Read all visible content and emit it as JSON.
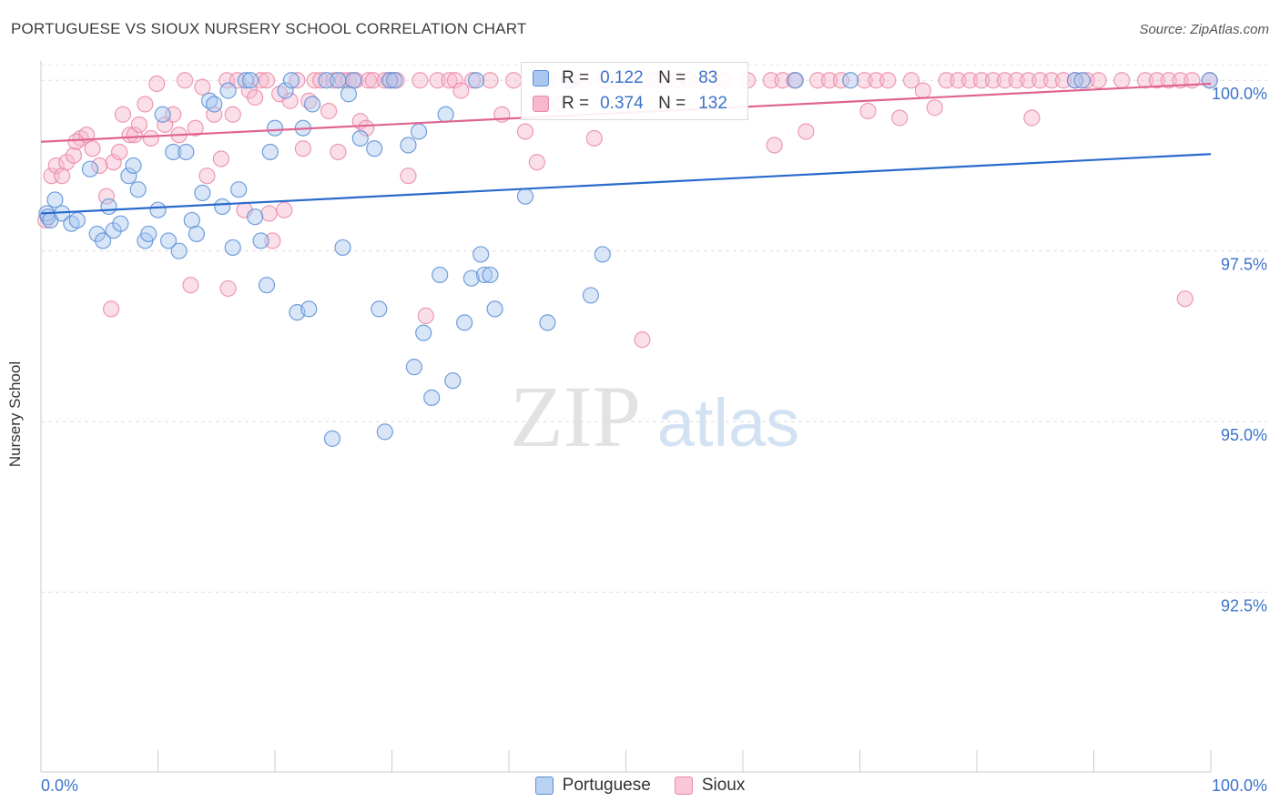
{
  "title": "PORTUGUESE VS SIOUX NURSERY SCHOOL CORRELATION CHART",
  "source": "Source: ZipAtlas.com",
  "watermark": {
    "part1": "ZIP",
    "part2": "atlas"
  },
  "colors": {
    "portuguese_fill": "#a9c7ef",
    "portuguese_stroke": "#5b8fd6",
    "portuguese_line": "#2a6acb",
    "sioux_fill": "#f7b8cb",
    "sioux_stroke": "#ea8aa8",
    "sioux_line": "#e06490",
    "tick_label": "#3b73c9",
    "grid": "#dddddd"
  },
  "legend_top": {
    "rows": [
      {
        "r_label": "R =",
        "r_value": "0.122",
        "n_label": "N =",
        "n_value": "83"
      },
      {
        "r_label": "R =",
        "r_value": "0.374",
        "n_label": "N =",
        "n_value": "132"
      }
    ]
  },
  "legend_bottom": [
    "Portuguese",
    "Sioux"
  ],
  "chart_data": {
    "type": "scatter",
    "title": "PORTUGUESE VS SIOUX NURSERY SCHOOL CORRELATION CHART",
    "xlabel": "",
    "ylabel": "Nursery School",
    "xlim": [
      0,
      100
    ],
    "ylim": [
      90.0,
      100.35
    ],
    "x_tick_labels": [
      "0.0%",
      "100.0%"
    ],
    "y_ticks": [
      {
        "value": 100.0,
        "label": "100.0%"
      },
      {
        "value": 97.5,
        "label": "97.5%"
      },
      {
        "value": 95.0,
        "label": "95.0%"
      },
      {
        "value": 92.5,
        "label": "92.5%"
      }
    ],
    "grid": true,
    "legend_position": "bottom",
    "series": [
      {
        "name": "Portuguese",
        "trend": {
          "x": [
            0,
            100
          ],
          "y": [
            98.05,
            98.92
          ]
        },
        "points": [
          [
            0.5,
            98.05
          ],
          [
            0.6,
            98.0
          ],
          [
            0.8,
            97.95
          ],
          [
            1.2,
            98.25
          ],
          [
            1.8,
            98.05
          ],
          [
            2.6,
            97.9
          ],
          [
            3.1,
            97.95
          ],
          [
            4.2,
            98.7
          ],
          [
            4.8,
            97.75
          ],
          [
            5.3,
            97.65
          ],
          [
            5.8,
            98.15
          ],
          [
            6.2,
            97.8
          ],
          [
            6.8,
            97.9
          ],
          [
            7.5,
            98.6
          ],
          [
            7.9,
            98.75
          ],
          [
            8.3,
            98.4
          ],
          [
            8.9,
            97.65
          ],
          [
            9.2,
            97.75
          ],
          [
            10.0,
            98.1
          ],
          [
            10.4,
            99.5
          ],
          [
            10.9,
            97.65
          ],
          [
            11.3,
            98.95
          ],
          [
            11.8,
            97.5
          ],
          [
            12.4,
            98.95
          ],
          [
            12.9,
            97.95
          ],
          [
            13.3,
            97.75
          ],
          [
            13.8,
            98.35
          ],
          [
            14.4,
            99.7
          ],
          [
            14.8,
            99.65
          ],
          [
            15.5,
            98.15
          ],
          [
            16.0,
            99.85
          ],
          [
            16.4,
            97.55
          ],
          [
            16.9,
            98.4
          ],
          [
            17.5,
            100.0
          ],
          [
            17.9,
            100.0
          ],
          [
            18.3,
            98.0
          ],
          [
            18.8,
            97.65
          ],
          [
            19.3,
            97.0
          ],
          [
            19.6,
            98.95
          ],
          [
            20.0,
            99.3
          ],
          [
            20.9,
            99.85
          ],
          [
            21.4,
            100.0
          ],
          [
            21.9,
            96.6
          ],
          [
            22.4,
            99.3
          ],
          [
            22.9,
            96.65
          ],
          [
            23.2,
            99.65
          ],
          [
            24.4,
            100.0
          ],
          [
            24.9,
            94.75
          ],
          [
            25.4,
            100.0
          ],
          [
            25.8,
            97.55
          ],
          [
            26.3,
            99.8
          ],
          [
            26.7,
            100.0
          ],
          [
            27.3,
            99.15
          ],
          [
            28.5,
            99.0
          ],
          [
            28.9,
            96.65
          ],
          [
            29.4,
            94.85
          ],
          [
            29.8,
            100.0
          ],
          [
            30.2,
            100.0
          ],
          [
            31.4,
            99.05
          ],
          [
            31.9,
            95.8
          ],
          [
            32.3,
            99.25
          ],
          [
            32.7,
            96.3
          ],
          [
            33.4,
            95.35
          ],
          [
            34.1,
            97.15
          ],
          [
            34.6,
            99.5
          ],
          [
            35.2,
            95.6
          ],
          [
            36.2,
            96.45
          ],
          [
            36.8,
            97.1
          ],
          [
            37.2,
            100.0
          ],
          [
            37.6,
            97.45
          ],
          [
            37.9,
            97.15
          ],
          [
            38.4,
            97.15
          ],
          [
            38.8,
            96.65
          ],
          [
            41.4,
            98.3
          ],
          [
            43.3,
            96.45
          ],
          [
            45.1,
            100.0
          ],
          [
            47.0,
            96.85
          ],
          [
            48.0,
            97.45
          ],
          [
            64.5,
            100.0
          ],
          [
            69.2,
            100.0
          ],
          [
            88.4,
            100.0
          ],
          [
            89.0,
            100.0
          ],
          [
            99.9,
            100.0
          ]
        ]
      },
      {
        "name": "Sioux",
        "trend": {
          "x": [
            0,
            100
          ],
          "y": [
            99.1,
            99.95
          ]
        },
        "points": [
          [
            0.4,
            97.95
          ],
          [
            0.9,
            98.6
          ],
          [
            1.3,
            98.75
          ],
          [
            1.8,
            98.6
          ],
          [
            2.2,
            98.8
          ],
          [
            2.8,
            98.9
          ],
          [
            3.4,
            99.15
          ],
          [
            3.9,
            99.2
          ],
          [
            4.4,
            99.0
          ],
          [
            5.0,
            98.75
          ],
          [
            5.6,
            98.3
          ],
          [
            6.2,
            98.8
          ],
          [
            6.7,
            98.95
          ],
          [
            7.0,
            99.5
          ],
          [
            7.6,
            99.2
          ],
          [
            8.0,
            99.2
          ],
          [
            8.4,
            99.35
          ],
          [
            8.9,
            99.65
          ],
          [
            9.4,
            99.15
          ],
          [
            9.9,
            99.95
          ],
          [
            10.6,
            99.35
          ],
          [
            11.3,
            99.5
          ],
          [
            11.8,
            99.2
          ],
          [
            12.3,
            100.0
          ],
          [
            12.8,
            97.0
          ],
          [
            13.2,
            99.3
          ],
          [
            13.8,
            99.9
          ],
          [
            14.2,
            98.6
          ],
          [
            14.8,
            99.5
          ],
          [
            15.4,
            98.85
          ],
          [
            15.9,
            100.0
          ],
          [
            16.4,
            99.5
          ],
          [
            16.8,
            100.0
          ],
          [
            17.4,
            98.1
          ],
          [
            17.8,
            99.85
          ],
          [
            18.3,
            99.75
          ],
          [
            18.8,
            100.0
          ],
          [
            19.3,
            100.0
          ],
          [
            19.8,
            97.65
          ],
          [
            20.4,
            99.8
          ],
          [
            20.8,
            98.1
          ],
          [
            21.3,
            99.7
          ],
          [
            21.9,
            100.0
          ],
          [
            22.4,
            99.0
          ],
          [
            22.9,
            99.7
          ],
          [
            23.4,
            100.0
          ],
          [
            23.9,
            100.0
          ],
          [
            24.6,
            99.55
          ],
          [
            25.0,
            100.0
          ],
          [
            25.4,
            98.95
          ],
          [
            25.8,
            100.0
          ],
          [
            26.3,
            100.0
          ],
          [
            26.9,
            100.0
          ],
          [
            27.3,
            99.4
          ],
          [
            28.0,
            100.0
          ],
          [
            28.4,
            100.0
          ],
          [
            29.4,
            100.0
          ],
          [
            29.9,
            100.0
          ],
          [
            30.4,
            100.0
          ],
          [
            31.4,
            98.6
          ],
          [
            32.4,
            100.0
          ],
          [
            32.9,
            96.55
          ],
          [
            33.9,
            100.0
          ],
          [
            34.9,
            100.0
          ],
          [
            35.4,
            100.0
          ],
          [
            35.9,
            99.85
          ],
          [
            36.9,
            100.0
          ],
          [
            38.4,
            100.0
          ],
          [
            39.4,
            99.5
          ],
          [
            40.4,
            100.0
          ],
          [
            41.4,
            99.25
          ],
          [
            42.4,
            98.8
          ],
          [
            43.4,
            100.0
          ],
          [
            44.4,
            99.65
          ],
          [
            45.4,
            100.0
          ],
          [
            46.4,
            100.0
          ],
          [
            47.3,
            99.15
          ],
          [
            48.3,
            100.0
          ],
          [
            49.3,
            100.0
          ],
          [
            50.4,
            100.0
          ],
          [
            51.4,
            96.2
          ],
          [
            52.4,
            100.0
          ],
          [
            53.4,
            100.0
          ],
          [
            54.4,
            100.0
          ],
          [
            55.4,
            100.0
          ],
          [
            57.4,
            100.0
          ],
          [
            58.4,
            100.0
          ],
          [
            60.4,
            100.0
          ],
          [
            62.4,
            100.0
          ],
          [
            62.7,
            99.05
          ],
          [
            63.4,
            100.0
          ],
          [
            64.4,
            100.0
          ],
          [
            65.4,
            99.25
          ],
          [
            66.4,
            100.0
          ],
          [
            67.4,
            100.0
          ],
          [
            68.4,
            100.0
          ],
          [
            70.4,
            100.0
          ],
          [
            70.7,
            99.55
          ],
          [
            71.4,
            100.0
          ],
          [
            72.4,
            100.0
          ],
          [
            73.4,
            99.45
          ],
          [
            74.4,
            100.0
          ],
          [
            75.4,
            99.85
          ],
          [
            76.4,
            99.6
          ],
          [
            77.4,
            100.0
          ],
          [
            78.4,
            100.0
          ],
          [
            79.4,
            100.0
          ],
          [
            80.4,
            100.0
          ],
          [
            81.4,
            100.0
          ],
          [
            82.4,
            100.0
          ],
          [
            83.4,
            100.0
          ],
          [
            84.4,
            100.0
          ],
          [
            84.7,
            99.45
          ],
          [
            85.4,
            100.0
          ],
          [
            86.4,
            100.0
          ],
          [
            87.4,
            100.0
          ],
          [
            88.4,
            100.0
          ],
          [
            89.4,
            100.0
          ],
          [
            90.4,
            100.0
          ],
          [
            92.4,
            100.0
          ],
          [
            94.4,
            100.0
          ],
          [
            95.4,
            100.0
          ],
          [
            96.4,
            100.0
          ],
          [
            97.4,
            100.0
          ],
          [
            97.8,
            96.8
          ],
          [
            98.4,
            100.0
          ],
          [
            99.9,
            100.0
          ],
          [
            6.0,
            96.65
          ],
          [
            3.0,
            99.1
          ],
          [
            16.0,
            96.95
          ],
          [
            19.5,
            98.05
          ],
          [
            27.8,
            99.3
          ]
        ]
      }
    ]
  }
}
